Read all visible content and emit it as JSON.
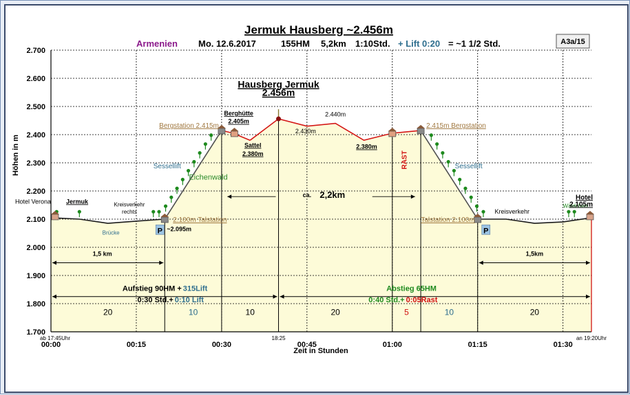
{
  "chart_data": {
    "type": "area",
    "title": "Jermuk Hausberg ~2.456m",
    "subtitle": {
      "region": "Armenien",
      "date": "Mo. 12.6.2017",
      "ascent": "155HM",
      "distance": "5,2km",
      "time": "1:10Std.",
      "lift": "+ Lift 0:20",
      "total": "= ~1 1/2 Std."
    },
    "badge": "A3a/15",
    "xlabel": "Zeit in Stunden",
    "ylabel": "Höhen in m",
    "ylim": [
      1700,
      2700
    ],
    "xlim": [
      0,
      95
    ],
    "y_ticks": [
      "1.700",
      "1.800",
      "1.900",
      "2.000",
      "2.100",
      "2.200",
      "2.300",
      "2.400",
      "2.500",
      "2.600",
      "2.700"
    ],
    "x_ticks": [
      {
        "value": 0,
        "label": "00:00"
      },
      {
        "value": 15,
        "label": "00:15"
      },
      {
        "value": 30,
        "label": "00:30"
      },
      {
        "value": 45,
        "label": "00:45"
      },
      {
        "value": 60,
        "label": "01:00"
      },
      {
        "value": 75,
        "label": "01:15"
      },
      {
        "value": 90,
        "label": "01:30"
      }
    ],
    "profile": [
      {
        "x": 0,
        "y": 2105
      },
      {
        "x": 5,
        "y": 2100
      },
      {
        "x": 10,
        "y": 2085
      },
      {
        "x": 15,
        "y": 2093
      },
      {
        "x": 20,
        "y": 2100
      },
      {
        "x": 30,
        "y": 2415
      },
      {
        "x": 32,
        "y": 2405
      },
      {
        "x": 35,
        "y": 2380
      },
      {
        "x": 40,
        "y": 2456
      },
      {
        "x": 45,
        "y": 2430
      },
      {
        "x": 50,
        "y": 2440
      },
      {
        "x": 55,
        "y": 2380
      },
      {
        "x": 60,
        "y": 2405
      },
      {
        "x": 65,
        "y": 2415
      },
      {
        "x": 75,
        "y": 2100
      },
      {
        "x": 80,
        "y": 2100
      },
      {
        "x": 85,
        "y": 2085
      },
      {
        "x": 90,
        "y": 2090
      },
      {
        "x": 95,
        "y": 2105
      }
    ],
    "section_dividers": [
      20,
      30,
      40,
      60,
      65,
      75
    ],
    "section_minutes": [
      {
        "from": 0,
        "to": 20,
        "label": "20",
        "color": "#000000"
      },
      {
        "from": 20,
        "to": 30,
        "label": "10",
        "color": "#2e6e8e"
      },
      {
        "from": 30,
        "to": 40,
        "label": "10",
        "color": "#000000"
      },
      {
        "from": 40,
        "to": 60,
        "label": "20",
        "color": "#000000"
      },
      {
        "from": 60,
        "to": 65,
        "label": "5",
        "color": "#d01010"
      },
      {
        "from": 65,
        "to": 75,
        "label": "10",
        "color": "#2e6e8e"
      },
      {
        "from": 75,
        "to": 95,
        "label": "20",
        "color": "#000000"
      }
    ],
    "start_time": "ab 17:45Uhr",
    "mid_time": "18:25",
    "end_time": "an 19:20Uhr",
    "summit": {
      "name": "Hausberg Jermuk",
      "height": "2.456m"
    },
    "labels": {
      "start": "Hotel Verona",
      "start_town": "Jermuk",
      "kreisverkehr_left": "Kreisverkehr",
      "kreisverkehr_left_2": "rechts",
      "bruecke": "Brücke",
      "talstation_left_h": "~2.095m",
      "talstation_left": "2.100m Talstation",
      "sessellift_left": "Sessellift",
      "eichenwald": "Eichenwald",
      "bergstation_left": "Bergstation 2.415m",
      "berghuette": "Berghütte",
      "berghuette_h": "2.405m",
      "sattel": "Sattel",
      "sattel_h": "2.380m",
      "p2430": "2.430m",
      "p2440": "2.440m",
      "p2380": "2.380m",
      "rast": "RAST",
      "bergstation_right": "2.415m Bergstation",
      "sessellift_right": "Sessellift",
      "talstation_right": "Talstation 2.100m",
      "kreisverkehr_right": "Kreisverkehr",
      "waeldchen": "Wäldchen",
      "end": "Hotel",
      "end_h": "2.105m",
      "parking": "P",
      "dist_left": "1,5 km",
      "dist_mid_prefix": "ca.",
      "dist_mid": "2,2km",
      "dist_right": "1,5km",
      "aufstieg": "Aufstieg 90HM +",
      "aufstieg_lift": "315Lift",
      "aufstieg_time": "0:30 Std.+",
      "aufstieg_lift_time": "0:10 Lift",
      "abstieg": "Abstieg  65HM",
      "abstieg_time": "0:40 Std.+",
      "abstieg_rast": "0:05Rast"
    },
    "colors": {
      "fill": "#fdfbd8",
      "walk_line": "#1a1a1a",
      "summit_line": "#d41717",
      "lift_line": "#505050",
      "tree": "#1e8a1e",
      "lift_label": "#2e6e8e",
      "station_label": "#a07840",
      "region": "#8b1a8b",
      "rast": "#d01010",
      "eichenwald": "#2a8a2a",
      "parking_bg": "#9cc4e4"
    },
    "grid": true
  }
}
